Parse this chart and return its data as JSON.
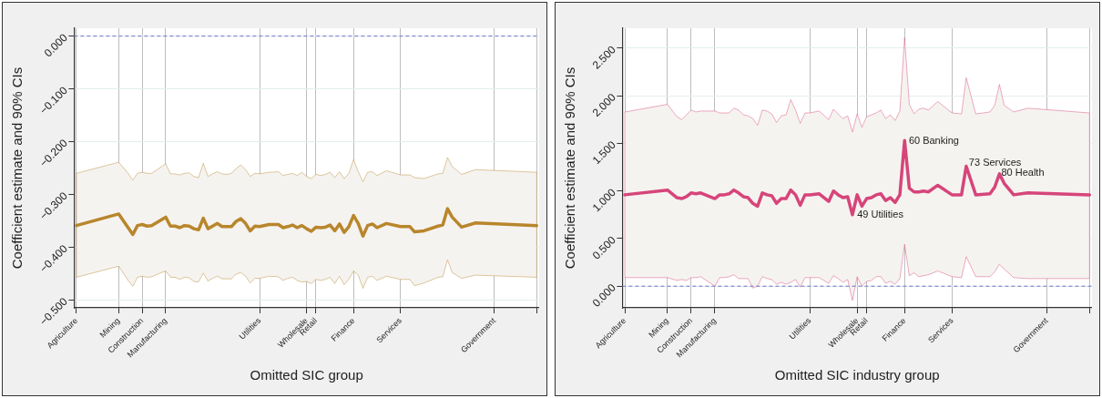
{
  "chart_data": [
    {
      "type": "line",
      "xlabel": "Omitted SIC group",
      "ylabel": "Coefficient estimate and 90% CIs",
      "ylim": [
        -0.515,
        0.015
      ],
      "yticks": [
        {
          "value": -0.5,
          "label": "−0.500"
        },
        {
          "value": -0.4,
          "label": "−0.400"
        },
        {
          "value": -0.3,
          "label": "−0.300"
        },
        {
          "value": -0.2,
          "label": "−0.200"
        },
        {
          "value": -0.1,
          "label": "−0.100"
        },
        {
          "value": 0,
          "label": "0.000"
        }
      ],
      "grid": true,
      "marker": "none",
      "ref_lines": [
        {
          "axis": "y",
          "value": 0,
          "color": "#6a73c9",
          "line_style": "dashed"
        }
      ],
      "categories": [
        "Agriculture",
        null,
        null,
        null,
        null,
        null,
        null,
        null,
        null,
        "Mining",
        null,
        null,
        null,
        null,
        "Construction",
        null,
        null,
        null,
        null,
        "Manufacturing",
        null,
        null,
        null,
        null,
        null,
        null,
        null,
        null,
        null,
        null,
        null,
        null,
        null,
        null,
        null,
        null,
        null,
        null,
        null,
        "Utilities",
        null,
        null,
        null,
        null,
        null,
        null,
        null,
        null,
        null,
        "Wholesale",
        null,
        "Retail",
        null,
        null,
        null,
        null,
        null,
        null,
        null,
        "Finance",
        null,
        null,
        null,
        null,
        null,
        null,
        null,
        null,
        null,
        "Services",
        null,
        null,
        null,
        null,
        null,
        null,
        null,
        null,
        null,
        null,
        null,
        null,
        null,
        null,
        null,
        null,
        null,
        null,
        null,
        "Government",
        null,
        null,
        null,
        null,
        null,
        null,
        null,
        null,
        null
      ],
      "series": [
        {
          "color": "#b8862c",
          "values": [
            -0.359,
            null,
            null,
            null,
            null,
            null,
            null,
            null,
            null,
            -0.337,
            null,
            -0.363,
            -0.376,
            -0.359,
            -0.357,
            -0.36,
            -0.359,
            null,
            null,
            -0.343,
            -0.36,
            -0.36,
            -0.363,
            -0.359,
            -0.36,
            -0.365,
            -0.367,
            -0.345,
            -0.365,
            -0.36,
            -0.355,
            -0.361,
            -0.361,
            -0.361,
            -0.351,
            -0.346,
            -0.355,
            -0.369,
            -0.36,
            -0.361,
            null,
            -0.357,
            null,
            -0.357,
            -0.363,
            -0.361,
            -0.358,
            -0.363,
            -0.359,
            -0.365,
            -0.37,
            -0.362,
            -0.363,
            -0.362,
            -0.358,
            -0.369,
            -0.356,
            -0.372,
            -0.361,
            -0.34,
            -0.355,
            -0.379,
            -0.359,
            -0.356,
            -0.363,
            null,
            -0.355,
            null,
            null,
            -0.361,
            null,
            -0.361,
            -0.371,
            null,
            -0.369,
            null,
            null,
            -0.36,
            -0.358,
            -0.327,
            -0.343,
            null,
            -0.362,
            null,
            null,
            -0.354,
            null,
            null,
            null,
            null,
            null,
            null,
            null,
            null,
            null,
            null,
            null,
            null,
            -0.359
          ],
          "upper": [
            -0.26,
            null,
            null,
            null,
            null,
            null,
            null,
            null,
            null,
            -0.239,
            null,
            -0.26,
            -0.273,
            -0.26,
            -0.258,
            -0.26,
            -0.26,
            null,
            null,
            -0.242,
            -0.261,
            -0.261,
            -0.263,
            -0.26,
            -0.259,
            -0.266,
            -0.268,
            -0.241,
            -0.266,
            -0.261,
            -0.257,
            -0.261,
            -0.262,
            -0.26,
            -0.251,
            -0.244,
            -0.253,
            -0.266,
            -0.26,
            -0.261,
            null,
            -0.258,
            null,
            -0.257,
            -0.264,
            -0.262,
            -0.26,
            -0.264,
            -0.258,
            -0.266,
            -0.27,
            -0.262,
            -0.264,
            -0.262,
            -0.258,
            -0.268,
            -0.257,
            -0.27,
            -0.26,
            -0.234,
            -0.257,
            -0.276,
            -0.258,
            -0.257,
            -0.264,
            null,
            -0.255,
            null,
            null,
            -0.263,
            null,
            -0.263,
            -0.268,
            null,
            -0.27,
            null,
            null,
            -0.261,
            -0.26,
            -0.23,
            -0.247,
            null,
            -0.262,
            null,
            null,
            -0.253,
            null,
            null,
            null,
            null,
            null,
            null,
            null,
            null,
            null,
            null,
            null,
            null,
            -0.258
          ],
          "lower": [
            -0.457,
            null,
            null,
            null,
            null,
            null,
            null,
            null,
            null,
            -0.436,
            null,
            -0.463,
            -0.474,
            -0.457,
            -0.455,
            -0.457,
            -0.456,
            null,
            null,
            -0.445,
            -0.457,
            -0.457,
            -0.461,
            -0.457,
            -0.458,
            -0.465,
            -0.466,
            -0.449,
            -0.464,
            -0.459,
            -0.455,
            -0.46,
            -0.46,
            -0.46,
            -0.451,
            -0.448,
            -0.455,
            -0.468,
            -0.459,
            -0.459,
            null,
            -0.455,
            null,
            -0.456,
            -0.463,
            -0.459,
            -0.457,
            -0.463,
            -0.466,
            -0.465,
            -0.469,
            -0.461,
            -0.463,
            -0.461,
            -0.457,
            -0.469,
            -0.455,
            -0.471,
            -0.461,
            -0.445,
            -0.453,
            -0.478,
            -0.457,
            -0.455,
            -0.463,
            null,
            -0.455,
            null,
            null,
            -0.461,
            null,
            -0.461,
            -0.473,
            null,
            -0.468,
            null,
            null,
            -0.457,
            -0.456,
            -0.424,
            -0.448,
            null,
            -0.459,
            null,
            null,
            -0.453,
            null,
            null,
            null,
            null,
            null,
            null,
            null,
            null,
            null,
            null,
            null,
            null,
            -0.457
          ]
        }
      ]
    },
    {
      "type": "line",
      "xlabel": "Omitted SIC industry group",
      "ylabel": "Coefficient estimate and 90% CIs",
      "ylim": [
        -0.228,
        2.71
      ],
      "yticks": [
        {
          "value": 0,
          "label": "0.000"
        },
        {
          "value": 0.5,
          "label": "0.500"
        },
        {
          "value": 1,
          "label": "1.000"
        },
        {
          "value": 1.5,
          "label": "1.500"
        },
        {
          "value": 2,
          "label": "2.000"
        },
        {
          "value": 2.5,
          "label": "2.500"
        }
      ],
      "grid": true,
      "marker": "none",
      "ref_lines": [
        {
          "axis": "y",
          "value": 0,
          "color": "#6a73c9",
          "line_style": "dashed"
        }
      ],
      "annotations": [
        "60 Banking",
        "73 Services",
        "80 Health",
        "49 Utilities"
      ],
      "categories": [
        "Agriculture",
        null,
        null,
        null,
        null,
        null,
        null,
        null,
        null,
        "Mining",
        null,
        null,
        null,
        null,
        "Construction",
        null,
        null,
        null,
        null,
        "Manufacturing",
        null,
        null,
        null,
        null,
        null,
        null,
        null,
        null,
        null,
        null,
        null,
        null,
        null,
        null,
        null,
        null,
        null,
        null,
        null,
        "Utilities",
        null,
        null,
        null,
        null,
        null,
        null,
        null,
        null,
        null,
        "Wholesale",
        null,
        "Retail",
        null,
        null,
        null,
        null,
        null,
        null,
        null,
        "Finance",
        null,
        null,
        null,
        null,
        null,
        null,
        null,
        null,
        null,
        "Services",
        null,
        null,
        null,
        null,
        null,
        null,
        null,
        null,
        null,
        null,
        null,
        null,
        null,
        null,
        null,
        null,
        null,
        null,
        null,
        "Government",
        null,
        null,
        null,
        null,
        null,
        null,
        null,
        null,
        null
      ],
      "series": [
        {
          "color": "#d6457a",
          "values": [
            0.96,
            null,
            null,
            null,
            null,
            null,
            null,
            null,
            null,
            1.01,
            null,
            0.93,
            0.92,
            0.94,
            0.98,
            0.97,
            0.98,
            null,
            null,
            0.92,
            0.96,
            0.96,
            0.97,
            1.01,
            0.98,
            0.94,
            0.93,
            0.87,
            0.84,
            0.98,
            0.96,
            0.95,
            0.87,
            0.92,
            0.92,
            1.01,
            0.96,
            0.85,
            0.96,
            0.96,
            null,
            0.97,
            null,
            0.89,
            1.0,
            0.96,
            0.93,
            0.94,
            0.75,
            0.96,
            0.84,
            0.92,
            0.93,
            0.96,
            0.97,
            0.9,
            0.93,
            0.88,
            0.96,
            1.53,
            1.03,
            0.99,
            0.99,
            1.0,
            0.99,
            null,
            1.06,
            null,
            null,
            0.96,
            null,
            0.96,
            1.26,
            null,
            0.96,
            null,
            null,
            0.97,
            1.04,
            1.18,
            1.08,
            null,
            0.96,
            null,
            null,
            0.98,
            null,
            null,
            null,
            null,
            null,
            null,
            null,
            null,
            null,
            null,
            null,
            null,
            0.96
          ],
          "upper": [
            1.83,
            null,
            null,
            null,
            null,
            null,
            null,
            null,
            null,
            1.91,
            null,
            1.78,
            1.75,
            1.8,
            1.85,
            1.83,
            1.84,
            null,
            null,
            1.84,
            1.82,
            1.82,
            1.82,
            1.87,
            1.85,
            1.8,
            1.79,
            1.76,
            1.69,
            1.85,
            1.84,
            1.81,
            1.72,
            1.79,
            1.8,
            1.96,
            1.85,
            1.71,
            1.82,
            1.82,
            null,
            1.84,
            null,
            1.75,
            1.86,
            1.81,
            1.76,
            1.79,
            1.62,
            1.81,
            1.67,
            1.78,
            1.8,
            1.82,
            1.85,
            1.76,
            1.8,
            1.74,
            1.84,
            2.61,
            1.91,
            1.81,
            1.86,
            1.87,
            1.85,
            null,
            1.94,
            null,
            null,
            1.82,
            null,
            1.81,
            2.19,
            null,
            1.81,
            null,
            null,
            1.83,
            1.9,
            2.12,
            1.9,
            null,
            1.83,
            null,
            null,
            1.87,
            null,
            null,
            null,
            null,
            null,
            null,
            null,
            null,
            null,
            null,
            null,
            null,
            1.82
          ],
          "lower": [
            0.09,
            null,
            null,
            null,
            null,
            null,
            null,
            null,
            null,
            0.09,
            null,
            0.06,
            0.07,
            0.06,
            0.09,
            0.09,
            0.1,
            null,
            null,
            0.0,
            0.09,
            0.09,
            0.1,
            0.12,
            0.08,
            0.08,
            0.08,
            -0.02,
            0.0,
            0.1,
            0.08,
            0.07,
            0.02,
            0.04,
            0.02,
            0.04,
            0.07,
            -0.01,
            0.09,
            0.09,
            null,
            0.09,
            null,
            0.03,
            0.11,
            0.08,
            0.04,
            0.07,
            -0.15,
            0.1,
            0.0,
            0.05,
            0.06,
            0.1,
            0.1,
            0.03,
            0.05,
            0.02,
            0.08,
            0.44,
            0.11,
            0.14,
            0.1,
            0.11,
            0.12,
            null,
            0.16,
            null,
            null,
            0.1,
            null,
            0.09,
            0.31,
            null,
            0.1,
            null,
            null,
            0.1,
            0.15,
            0.23,
            0.18,
            null,
            0.09,
            null,
            null,
            0.08,
            null,
            null,
            null,
            null,
            null,
            null,
            null,
            null,
            null,
            null,
            null,
            null,
            0.08
          ]
        }
      ]
    }
  ]
}
